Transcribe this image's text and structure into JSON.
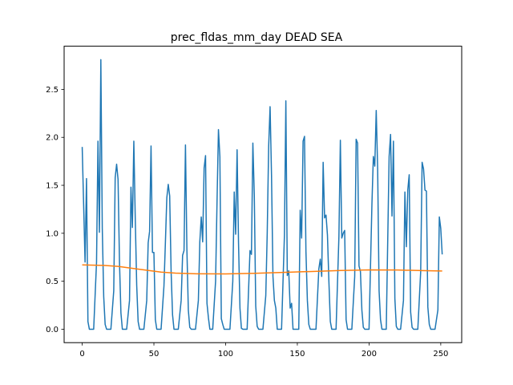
{
  "chart_data": {
    "type": "line",
    "title": "prec_fldas_mm_day DEAD SEA",
    "xlabel": "",
    "ylabel": "",
    "xlim": [
      -12.6,
      264.6
    ],
    "ylim": [
      -0.14,
      2.95
    ],
    "xticks": [
      0,
      50,
      100,
      150,
      200,
      250
    ],
    "xtick_labels": [
      "0",
      "50",
      "100",
      "150",
      "200",
      "250"
    ],
    "yticks": [
      0.0,
      0.5,
      1.0,
      1.5,
      2.0,
      2.5
    ],
    "ytick_labels": [
      "0.0",
      "0.5",
      "1.0",
      "1.5",
      "2.0",
      "2.5"
    ],
    "grid": false,
    "legend": "none",
    "series": [
      {
        "color": "#1f77b4",
        "points": [
          [
            0,
            1.9
          ],
          [
            2,
            0.7
          ],
          [
            3,
            1.57
          ],
          [
            4,
            0.08
          ],
          [
            5,
            0.0
          ],
          [
            6,
            0.0
          ],
          [
            8,
            0.0
          ],
          [
            10,
            0.7
          ],
          [
            11,
            1.96
          ],
          [
            12,
            1.01
          ],
          [
            13,
            2.81
          ],
          [
            14,
            1.05
          ],
          [
            15,
            0.34
          ],
          [
            16,
            0.05
          ],
          [
            17,
            0.0
          ],
          [
            19,
            0.0
          ],
          [
            20,
            0.0
          ],
          [
            22,
            0.4
          ],
          [
            23,
            1.58
          ],
          [
            24,
            1.72
          ],
          [
            25,
            1.56
          ],
          [
            26,
            0.7
          ],
          [
            27,
            0.17
          ],
          [
            28,
            0.0
          ],
          [
            31,
            0.0
          ],
          [
            33,
            0.3
          ],
          [
            34,
            1.48
          ],
          [
            35,
            1.06
          ],
          [
            36,
            1.96
          ],
          [
            37,
            1.15
          ],
          [
            38,
            0.46
          ],
          [
            39,
            0.08
          ],
          [
            40,
            0.0
          ],
          [
            43,
            0.0
          ],
          [
            45,
            0.3
          ],
          [
            46,
            0.9
          ],
          [
            47,
            1.02
          ],
          [
            48,
            1.91
          ],
          [
            49,
            0.8
          ],
          [
            50,
            0.8
          ],
          [
            51,
            0.1
          ],
          [
            52,
            0.0
          ],
          [
            55,
            0.0
          ],
          [
            57,
            0.45
          ],
          [
            58,
            0.9
          ],
          [
            59,
            1.37
          ],
          [
            60,
            1.51
          ],
          [
            61,
            1.39
          ],
          [
            62,
            0.6
          ],
          [
            63,
            0.15
          ],
          [
            64,
            0.0
          ],
          [
            67,
            0.0
          ],
          [
            69,
            0.3
          ],
          [
            70,
            0.77
          ],
          [
            71,
            0.82
          ],
          [
            72,
            1.92
          ],
          [
            73,
            0.83
          ],
          [
            74,
            0.2
          ],
          [
            75,
            0.02
          ],
          [
            76,
            0.0
          ],
          [
            79,
            0.0
          ],
          [
            81,
            0.3
          ],
          [
            82,
            0.91
          ],
          [
            83,
            1.17
          ],
          [
            84,
            0.91
          ],
          [
            85,
            1.68
          ],
          [
            86,
            1.81
          ],
          [
            87,
            0.27
          ],
          [
            88,
            0.12
          ],
          [
            89,
            0.0
          ],
          [
            91,
            0.0
          ],
          [
            93,
            0.5
          ],
          [
            94,
            1.32
          ],
          [
            95,
            2.08
          ],
          [
            96,
            1.8
          ],
          [
            97,
            0.11
          ],
          [
            98,
            0.05
          ],
          [
            99,
            0.0
          ],
          [
            103,
            0.0
          ],
          [
            105,
            0.5
          ],
          [
            106,
            1.43
          ],
          [
            107,
            0.99
          ],
          [
            108,
            1.87
          ],
          [
            109,
            0.9
          ],
          [
            110,
            0.22
          ],
          [
            111,
            0.01
          ],
          [
            112,
            0.0
          ],
          [
            115,
            0.0
          ],
          [
            117,
            0.82
          ],
          [
            118,
            0.78
          ],
          [
            119,
            1.94
          ],
          [
            120,
            1.39
          ],
          [
            121,
            0.24
          ],
          [
            122,
            0.03
          ],
          [
            123,
            0.0
          ],
          [
            126,
            0.0
          ],
          [
            128,
            0.35
          ],
          [
            129,
            1.0
          ],
          [
            130,
            1.9
          ],
          [
            131,
            2.32
          ],
          [
            132,
            1.6
          ],
          [
            133,
            0.55
          ],
          [
            134,
            0.3
          ],
          [
            135,
            0.22
          ],
          [
            136,
            0.0
          ],
          [
            139,
            0.0
          ],
          [
            141,
            0.98
          ],
          [
            142,
            2.38
          ],
          [
            143,
            0.56
          ],
          [
            144,
            0.61
          ],
          [
            145,
            0.22
          ],
          [
            146,
            0.27
          ],
          [
            147,
            0.0
          ],
          [
            149,
            0.0
          ],
          [
            151,
            0.0
          ],
          [
            152,
            1.24
          ],
          [
            153,
            0.95
          ],
          [
            154,
            1.96
          ],
          [
            155,
            2.01
          ],
          [
            156,
            0.81
          ],
          [
            157,
            0.3
          ],
          [
            158,
            0.05
          ],
          [
            159,
            0.0
          ],
          [
            163,
            0.0
          ],
          [
            165,
            0.63
          ],
          [
            166,
            0.73
          ],
          [
            167,
            0.55
          ],
          [
            168,
            1.74
          ],
          [
            169,
            1.16
          ],
          [
            170,
            1.19
          ],
          [
            171,
            0.98
          ],
          [
            172,
            0.5
          ],
          [
            173,
            0.08
          ],
          [
            174,
            0.0
          ],
          [
            177,
            0.0
          ],
          [
            179,
            0.97
          ],
          [
            180,
            1.97
          ],
          [
            181,
            0.95
          ],
          [
            182,
            1.0
          ],
          [
            183,
            1.03
          ],
          [
            184,
            0.1
          ],
          [
            185,
            0.0
          ],
          [
            188,
            0.0
          ],
          [
            190,
            0.55
          ],
          [
            191,
            1.98
          ],
          [
            192,
            1.94
          ],
          [
            193,
            0.66
          ],
          [
            194,
            0.6
          ],
          [
            195,
            0.2
          ],
          [
            196,
            0.02
          ],
          [
            197,
            0.0
          ],
          [
            200,
            0.0
          ],
          [
            202,
            1.3
          ],
          [
            203,
            1.8
          ],
          [
            204,
            1.7
          ],
          [
            205,
            2.28
          ],
          [
            206,
            1.67
          ],
          [
            207,
            0.4
          ],
          [
            208,
            0.1
          ],
          [
            209,
            0.0
          ],
          [
            212,
            0.0
          ],
          [
            214,
            1.8
          ],
          [
            215,
            2.03
          ],
          [
            216,
            1.18
          ],
          [
            217,
            1.96
          ],
          [
            218,
            0.32
          ],
          [
            219,
            0.03
          ],
          [
            220,
            0.0
          ],
          [
            222,
            0.0
          ],
          [
            224,
            0.3
          ],
          [
            225,
            1.43
          ],
          [
            226,
            0.86
          ],
          [
            227,
            1.45
          ],
          [
            228,
            1.61
          ],
          [
            229,
            0.18
          ],
          [
            230,
            0.02
          ],
          [
            231,
            0.0
          ],
          [
            234,
            0.0
          ],
          [
            236,
            0.6
          ],
          [
            237,
            1.74
          ],
          [
            238,
            1.67
          ],
          [
            239,
            1.45
          ],
          [
            240,
            1.44
          ],
          [
            241,
            0.23
          ],
          [
            242,
            0.05
          ],
          [
            243,
            0.0
          ],
          [
            246,
            0.0
          ],
          [
            248,
            0.2
          ],
          [
            249,
            1.17
          ],
          [
            250,
            1.05
          ],
          [
            251,
            0.78
          ]
        ]
      },
      {
        "color": "#ff7f0e",
        "points": [
          [
            0,
            0.67
          ],
          [
            15,
            0.665
          ],
          [
            25,
            0.655
          ],
          [
            40,
            0.625
          ],
          [
            55,
            0.595
          ],
          [
            65,
            0.585
          ],
          [
            80,
            0.578
          ],
          [
            100,
            0.577
          ],
          [
            120,
            0.583
          ],
          [
            140,
            0.592
          ],
          [
            160,
            0.602
          ],
          [
            180,
            0.612
          ],
          [
            200,
            0.618
          ],
          [
            220,
            0.617
          ],
          [
            240,
            0.61
          ],
          [
            251,
            0.607
          ]
        ]
      }
    ]
  }
}
